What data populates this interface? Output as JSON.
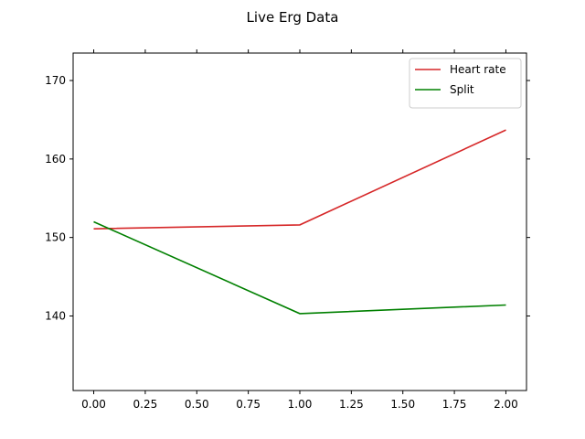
{
  "chart_data": {
    "type": "line",
    "title": "Live Erg Data",
    "xlabel": "",
    "ylabel": "",
    "xlim": [
      -0.1,
      2.1
    ],
    "ylim": [
      130.5,
      173.5
    ],
    "x_ticks": [
      0.0,
      0.25,
      0.5,
      0.75,
      1.0,
      1.25,
      1.5,
      1.75,
      2.0
    ],
    "x_tick_labels": [
      "0.00",
      "0.25",
      "0.50",
      "0.75",
      "1.00",
      "1.25",
      "1.50",
      "1.75",
      "2.00"
    ],
    "y_ticks": [
      140,
      150,
      160,
      170
    ],
    "y_tick_labels": [
      "140",
      "150",
      "160",
      "170"
    ],
    "grid": false,
    "legend_position": "top-right",
    "x": [
      0,
      1,
      2
    ],
    "series": [
      {
        "name": "Heart rate",
        "color": "#d62728",
        "values": [
          151.1,
          151.6,
          163.7
        ]
      },
      {
        "name": "Split",
        "color": "#008000",
        "values": [
          152.0,
          140.3,
          141.4
        ]
      }
    ]
  }
}
